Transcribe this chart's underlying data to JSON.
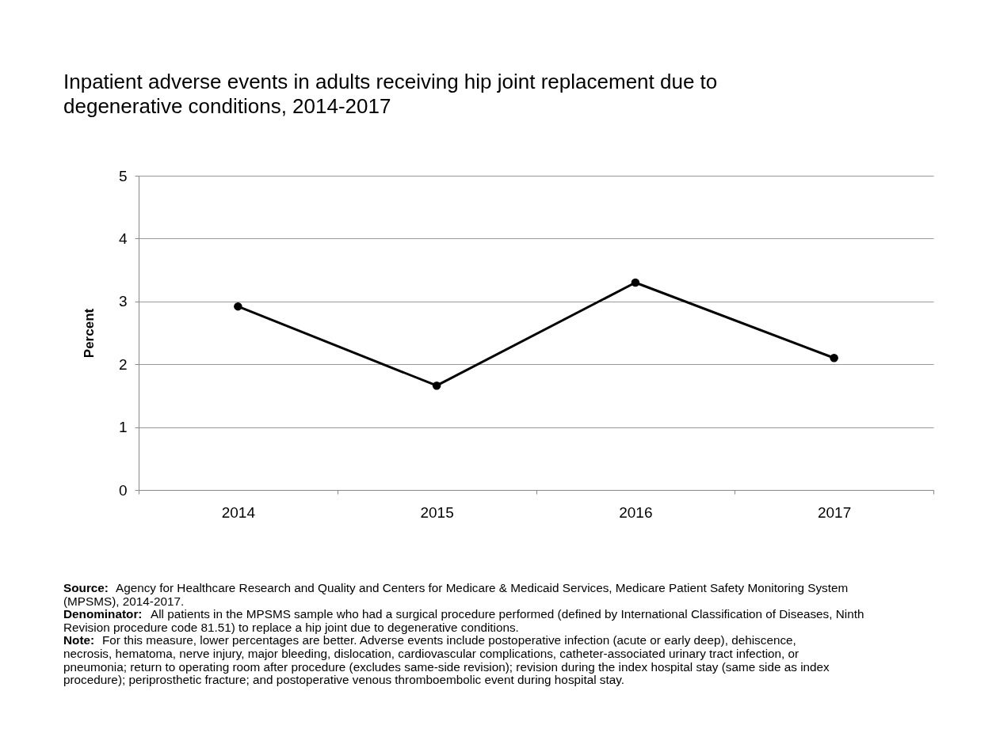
{
  "chart_data": {
    "type": "line",
    "title": "Inpatient adverse events in adults receiving hip joint replacement due to degenerative conditions, 2014-2017",
    "ylabel": "Percent",
    "categories": [
      "2014",
      "2015",
      "2016",
      "2017"
    ],
    "series": [
      {
        "color": "#000000",
        "values": [
          2.92,
          1.66,
          3.3,
          2.1
        ]
      }
    ],
    "ylim": [
      0,
      5
    ],
    "yticks": [
      0,
      1,
      2,
      3,
      4,
      5
    ],
    "grid": "y",
    "legend": false,
    "marker": "circle",
    "line_style": "solid",
    "annotations": [
      "Source: Agency for Healthcare Research and Quality and Centers for Medicare & Medicaid Services, Medicare Patient Safety Monitoring System (MPSMS), 2014-2017.",
      "Denominator: All patients in the MPSMS sample who had a surgical procedure performed (defined by International Classification of Diseases, Ninth Revision procedure code 81.51) to replace a hip joint due to degenerative conditions.",
      "Note: For this measure, lower percentages are better. Adverse events include postoperative infection (acute or early deep), dehiscence, necrosis, hematoma, nerve injury, major bleeding, dislocation, cardiovascular complications, catheter-associated urinary tract infection, or pneumonia; return to operating room after procedure (excludes same-side revision); revision during the index hospital stay (same side as index procedure); periprosthetic fracture; and postoperative venous thromboembolic event during hospital stay."
    ]
  }
}
